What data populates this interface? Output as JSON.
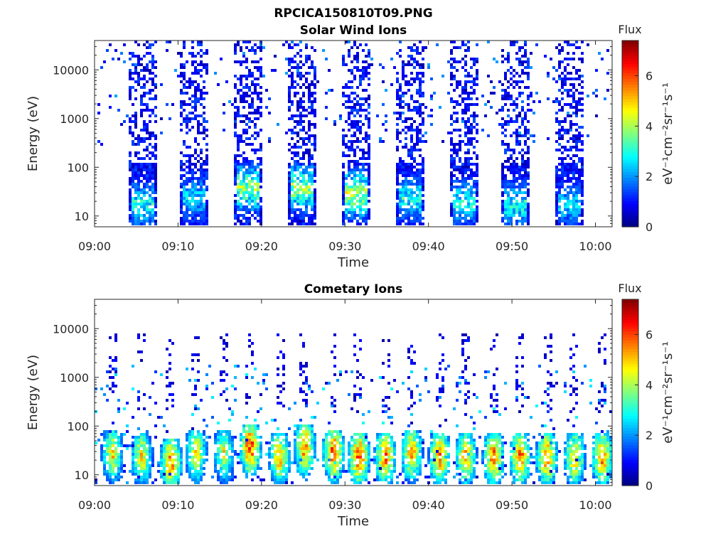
{
  "figure": {
    "title": "RPCICA150810T09.PNG"
  },
  "chart_data": [
    {
      "type": "heatmap",
      "title": "Solar Wind Ions",
      "xlabel": "Time",
      "ylabel": "Energy (eV)",
      "y_scale": "log",
      "xlim": [
        "09:00",
        "10:02"
      ],
      "ylim": [
        6,
        40000
      ],
      "x_ticks": [
        "09:00",
        "09:10",
        "09:20",
        "09:30",
        "09:40",
        "09:50",
        "10:00"
      ],
      "y_ticks": [
        "10",
        "100",
        "1000",
        "10000"
      ],
      "colorbar": {
        "label": "Flux",
        "units_label": "eV⁻¹cm⁻²sr⁻¹s⁻¹",
        "range": [
          0,
          7.4
        ],
        "ticks": [
          "0",
          "2",
          "4",
          "6"
        ]
      },
      "bursts": [
        {
          "center": "09:05:30",
          "peak_energy_eV": 18,
          "peak_flux": 3.5
        },
        {
          "center": "09:11:50",
          "peak_energy_eV": 25,
          "peak_flux": 3
        },
        {
          "center": "09:18:10",
          "peak_energy_eV": 40,
          "peak_flux": 4.5
        },
        {
          "center": "09:24:40",
          "peak_energy_eV": 40,
          "peak_flux": 4.5
        },
        {
          "center": "09:31:10",
          "peak_energy_eV": 30,
          "peak_flux": 4.8
        },
        {
          "center": "09:37:40",
          "peak_energy_eV": 25,
          "peak_flux": 3.5
        },
        {
          "center": "09:44:10",
          "peak_energy_eV": 20,
          "peak_flux": 3.5
        },
        {
          "center": "09:50:20",
          "peak_energy_eV": 18,
          "peak_flux": 3.5
        },
        {
          "center": "09:56:50",
          "peak_energy_eV": 18,
          "peak_flux": 3
        }
      ],
      "background": "sparse low-flux (0-2) pixels from 10 eV to 30000 eV"
    },
    {
      "type": "heatmap",
      "title": "Cometary Ions",
      "xlabel": "Time",
      "ylabel": "Energy (eV)",
      "y_scale": "log",
      "xlim": [
        "09:00",
        "10:02"
      ],
      "ylim": [
        6,
        40000
      ],
      "x_ticks": [
        "09:00",
        "09:10",
        "09:20",
        "09:30",
        "09:40",
        "09:50",
        "10:00"
      ],
      "y_ticks": [
        "10",
        "100",
        "1000",
        "10000"
      ],
      "colorbar": {
        "label": "Flux",
        "units_label": "eV⁻¹cm⁻²sr⁻¹s⁻¹",
        "range": [
          0,
          7.4
        ],
        "ticks": [
          "0",
          "2",
          "4",
          "6"
        ]
      },
      "blobs": [
        {
          "center": "09:02:00",
          "peak_energy_eV": 30,
          "peak_flux": 5.5
        },
        {
          "center": "09:05:30",
          "peak_energy_eV": 25,
          "peak_flux": 5.5
        },
        {
          "center": "09:09:00",
          "peak_energy_eV": 20,
          "peak_flux": 6.5
        },
        {
          "center": "09:12:00",
          "peak_energy_eV": 30,
          "peak_flux": 5.5
        },
        {
          "center": "09:15:20",
          "peak_energy_eV": 30,
          "peak_flux": 5
        },
        {
          "center": "09:18:30",
          "peak_energy_eV": 40,
          "peak_flux": 7
        },
        {
          "center": "09:22:00",
          "peak_energy_eV": 25,
          "peak_flux": 6
        },
        {
          "center": "09:25:00",
          "peak_energy_eV": 40,
          "peak_flux": 6.5
        },
        {
          "center": "09:28:30",
          "peak_energy_eV": 30,
          "peak_flux": 7
        },
        {
          "center": "09:31:30",
          "peak_energy_eV": 25,
          "peak_flux": 7
        },
        {
          "center": "09:34:40",
          "peak_energy_eV": 25,
          "peak_flux": 6.5
        },
        {
          "center": "09:37:50",
          "peak_energy_eV": 30,
          "peak_flux": 6
        },
        {
          "center": "09:41:10",
          "peak_energy_eV": 25,
          "peak_flux": 6.5
        },
        {
          "center": "09:44:20",
          "peak_energy_eV": 25,
          "peak_flux": 6
        },
        {
          "center": "09:47:40",
          "peak_energy_eV": 25,
          "peak_flux": 6.5
        },
        {
          "center": "09:50:50",
          "peak_energy_eV": 25,
          "peak_flux": 6.5
        },
        {
          "center": "09:54:00",
          "peak_energy_eV": 25,
          "peak_flux": 6.5
        },
        {
          "center": "09:57:20",
          "peak_energy_eV": 25,
          "peak_flux": 6
        },
        {
          "center": "10:00:40",
          "peak_energy_eV": 25,
          "peak_flux": 6.5
        }
      ],
      "background": "sparse low-flux (0-3) pixels from 10 eV to 10000 eV"
    }
  ]
}
